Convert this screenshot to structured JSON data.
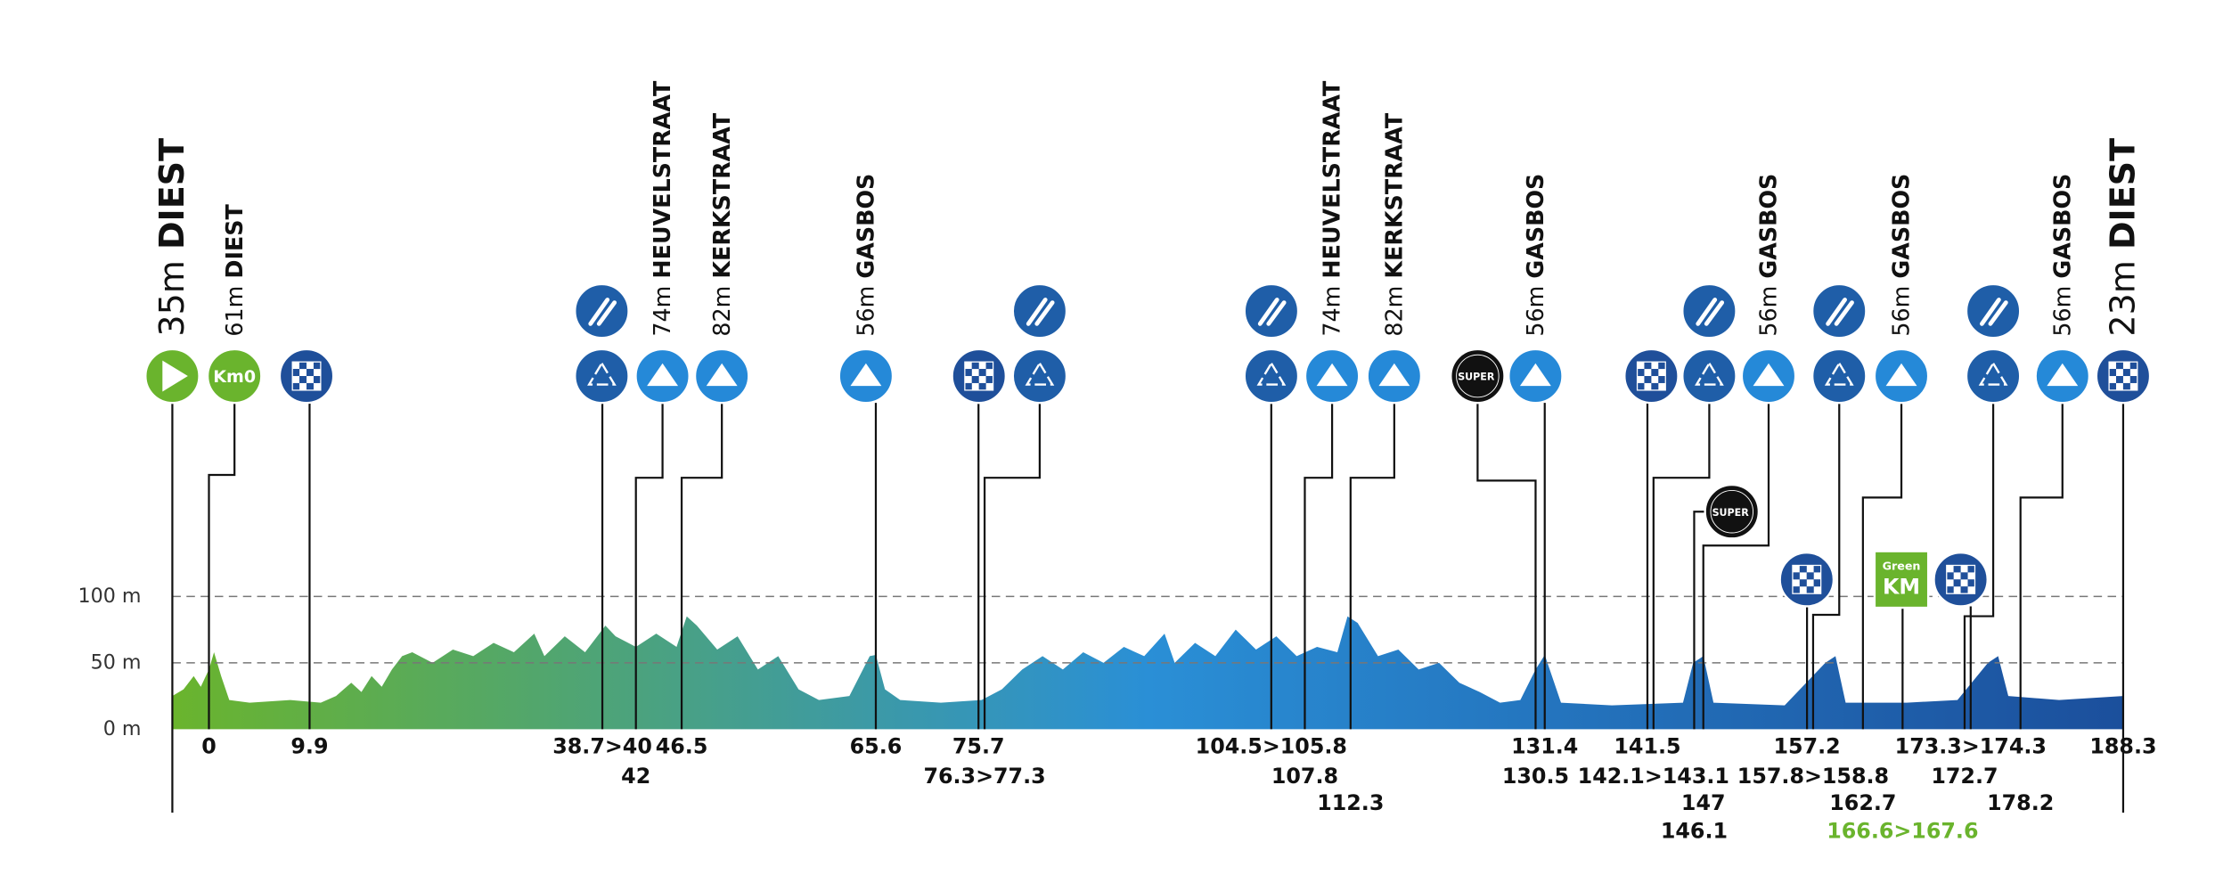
{
  "chart_data": {
    "type": "area",
    "xlim": [
      -3.6,
      188.3
    ],
    "ylim": [
      0,
      100
    ],
    "yticks": [
      {
        "value": 0,
        "label": "0 m"
      },
      {
        "value": 50,
        "label": "50 m"
      },
      {
        "value": 100,
        "label": "100 m"
      }
    ],
    "grid": true,
    "colors": [
      "#6ab42d",
      "#2a8fd6",
      "#1b4f9c"
    ],
    "x": [
      -3.6,
      -2.5,
      -1.5,
      -0.8,
      0,
      0.5,
      1.2,
      2,
      4,
      8,
      11,
      12.5,
      14,
      15,
      16,
      17,
      18,
      19,
      20,
      22,
      24,
      26,
      28,
      30,
      32,
      33,
      35,
      37,
      39,
      40,
      42,
      44,
      46,
      47,
      48,
      50,
      52,
      54,
      56,
      58,
      60,
      63,
      65,
      65.6,
      66.5,
      68,
      72,
      76,
      78,
      80,
      82,
      84,
      86,
      88,
      90,
      92,
      94,
      95,
      97,
      99,
      101,
      103,
      105,
      107,
      109,
      111,
      112,
      113,
      115,
      117,
      119,
      121,
      123,
      125,
      127,
      129,
      130.5,
      131.4,
      133,
      138,
      145,
      146,
      147,
      148,
      155,
      159,
      160,
      161,
      167,
      172,
      175,
      176,
      177,
      182,
      188.3
    ],
    "values": [
      25,
      30,
      40,
      32,
      45,
      58,
      40,
      22,
      20,
      22,
      20,
      25,
      35,
      28,
      40,
      32,
      45,
      55,
      58,
      50,
      60,
      55,
      65,
      58,
      72,
      55,
      70,
      58,
      78,
      70,
      62,
      72,
      62,
      85,
      78,
      60,
      70,
      45,
      55,
      30,
      22,
      25,
      55,
      56,
      30,
      22,
      20,
      22,
      30,
      45,
      55,
      45,
      58,
      50,
      62,
      55,
      72,
      50,
      65,
      55,
      75,
      60,
      70,
      55,
      62,
      58,
      85,
      80,
      55,
      60,
      45,
      50,
      35,
      28,
      20,
      22,
      45,
      56,
      20,
      18,
      20,
      50,
      55,
      20,
      18,
      50,
      55,
      20,
      20,
      22,
      50,
      55,
      25,
      22,
      25
    ],
    "icon_texts": {
      "km0": "Km0",
      "super": "SUPER",
      "green_top": "Green",
      "green_bottom": "KM"
    },
    "markers": [
      {
        "icon": "start",
        "altitude": "35m",
        "name": "DIEST"
      },
      {
        "icon": "km0",
        "km": 0,
        "altitude": "61m",
        "name": "DIEST"
      },
      {
        "icon": "sprint",
        "km": 9.9
      },
      {
        "icon": "recycle",
        "feed": true,
        "km": 38.7,
        "km_label": "38.7>40"
      },
      {
        "icon": "climb",
        "km": 42,
        "altitude": "74m",
        "name": "HEUVELSTRAAT"
      },
      {
        "icon": "climb",
        "km": 46.5,
        "altitude": "82m",
        "name": "KERKSTRAAT"
      },
      {
        "icon": "climb",
        "km": 65.6,
        "altitude": "56m",
        "name": "GASBOS"
      },
      {
        "icon": "sprint",
        "km": 75.7
      },
      {
        "icon": "recycle",
        "feed": true,
        "km": 76.3,
        "km_label": "76.3>77.3"
      },
      {
        "icon": "recycle",
        "feed": true,
        "km": 104.5,
        "km_label": "104.5>105.8"
      },
      {
        "icon": "climb",
        "km": 107.8,
        "altitude": "74m",
        "name": "HEUVELSTRAAT"
      },
      {
        "icon": "climb",
        "km": 112.3,
        "altitude": "82m",
        "name": "KERKSTRAAT"
      },
      {
        "icon": "super",
        "km": 130.5
      },
      {
        "icon": "climb",
        "km": 131.4,
        "altitude": "56m",
        "name": "GASBOS"
      },
      {
        "icon": "sprint",
        "km": 141.5
      },
      {
        "icon": "recycle",
        "feed": true,
        "km": 142.1,
        "km_label": "142.1>143.1"
      },
      {
        "icon": "climb",
        "km": 147,
        "altitude": "56m",
        "name": "GASBOS"
      },
      {
        "icon": "super",
        "km": 146.1
      },
      {
        "icon": "sprint",
        "km": 157.2
      },
      {
        "icon": "recycle",
        "feed": true,
        "km": 157.8,
        "km_label": "157.8>158.8"
      },
      {
        "icon": "climb",
        "km": 162.7,
        "altitude": "56m",
        "name": "GASBOS"
      },
      {
        "icon": "green",
        "km": 166.6,
        "km_label": "166.6>167.6",
        "color": "#6ab42d"
      },
      {
        "icon": "sprint",
        "km": 173.3,
        "km_label": "173.3>174.3"
      },
      {
        "icon": "recycle",
        "feed": true,
        "km": 172.7
      },
      {
        "icon": "climb",
        "km": 178.2,
        "altitude": "56m",
        "name": "GASBOS"
      },
      {
        "icon": "sprint",
        "km": 188.3,
        "altitude": "23m",
        "name": "DIEST"
      }
    ]
  }
}
